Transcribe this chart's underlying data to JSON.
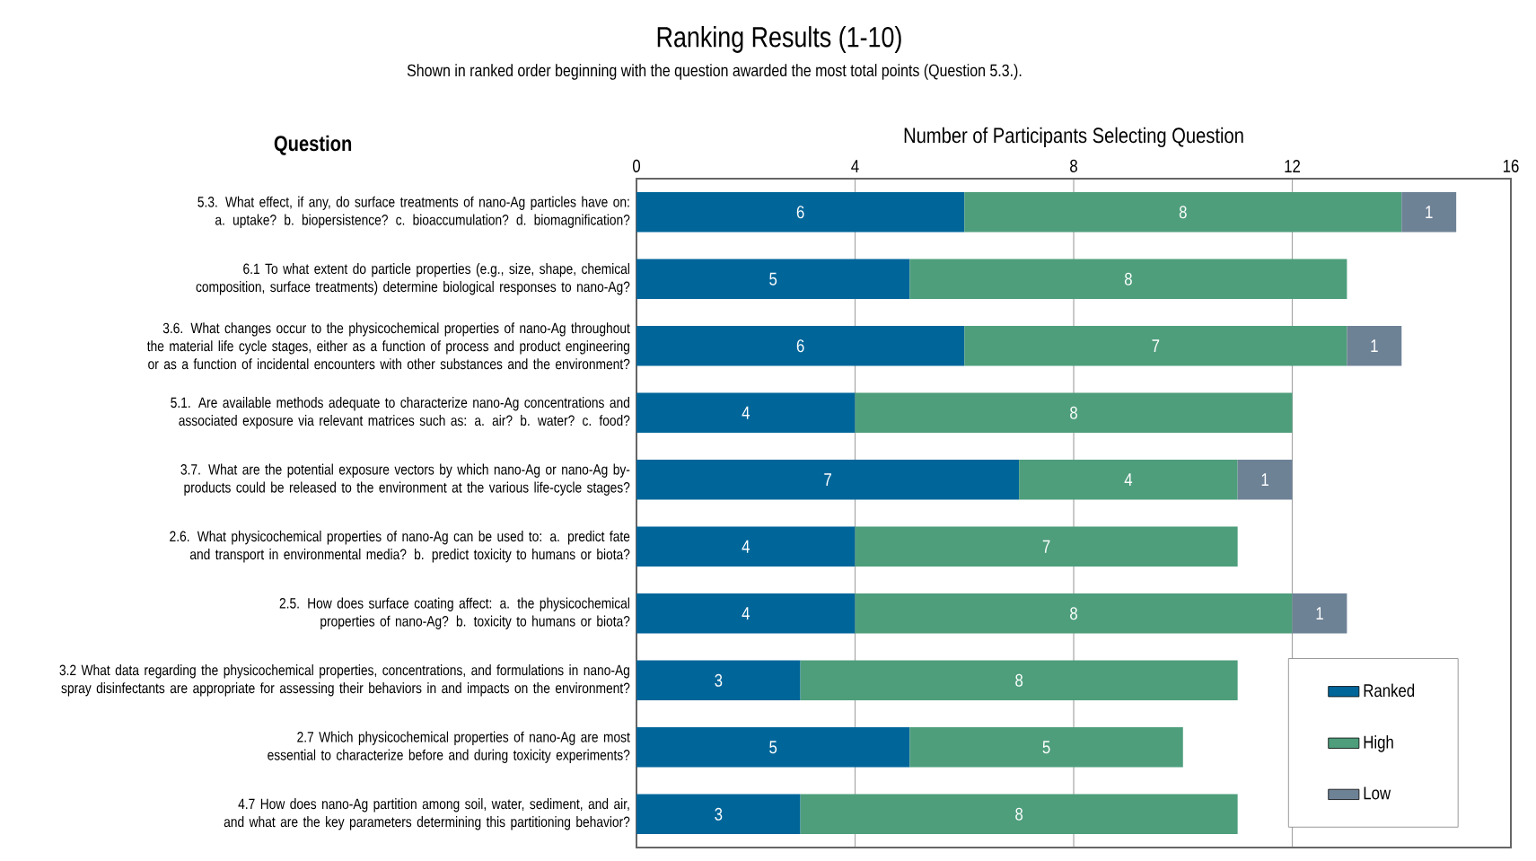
{
  "chart_data": {
    "type": "bar",
    "orientation": "horizontal",
    "stacked": true,
    "title": "Ranking Results (1-10)",
    "subtitle": "Shown in ranked order beginning with the question awarded the most total points (Question 5.3.).",
    "xlabel": "Number of Participants Selecting Question",
    "ylabel": "Question",
    "categories": [
      "5.3. What effect, if any, do surface treatments of nano-Ag particles have on: a. uptake? b. biopersistence? c. bioaccumulation? d. biomagnification?",
      "6.1 To what extent do particle properties (e.g., size, shape, chemical composition, surface treatments) determine biological responses to nano-Ag?",
      "3.6. What changes occur to the physicochemical properties of nano-Ag throughout the material life cycle stages, either as a function of process and product engineering or as a function of incidental encounters with other substances and the environment?",
      "5.1. Are available methods adequate to characterize nano-Ag concentrations and associated exposure via relevant matrices such as: a. air? b. water? c. food?",
      "3.7. What are the potential exposure vectors by which nano-Ag or nano-Ag by-products could be released to the environment at the various life-cycle stages?",
      "2.6. What physicochemical properties of nano-Ag can be used to: a. predict fate and transport in environmental media? b. predict toxicity to humans or biota?",
      "2.5. How does surface coating affect: a. the physicochemical properties of nano-Ag? b. toxicity to humans or biota?",
      "3.2 What data regarding the physicochemical properties, concentrations, and formulations in nano-Ag spray disinfectants are appropriate for assessing their behaviors in and impacts on the environment?",
      "2.7 Which physicochemical properties of nano-Ag are most essential to characterize before and during toxicity experiments?",
      "4.7 How does nano-Ag partition among soil, water, sediment, and air, and what are the key parameters determining this partitioning behavior?"
    ],
    "series": [
      {
        "name": "Ranked",
        "color": "#00669a",
        "values": [
          6,
          5,
          6,
          4,
          7,
          4,
          4,
          3,
          5,
          3
        ]
      },
      {
        "name": "High",
        "color": "#4e9e7c",
        "values": [
          8,
          8,
          7,
          8,
          4,
          7,
          8,
          8,
          5,
          8
        ]
      },
      {
        "name": "Low",
        "color": "#6e8296",
        "values": [
          1,
          null,
          1,
          null,
          1,
          null,
          1,
          null,
          null,
          null
        ]
      }
    ],
    "xlim": [
      0,
      16
    ],
    "xticks": [
      0,
      4,
      8,
      12,
      16
    ],
    "grid": "x",
    "legend": "bottom right",
    "data_labels": true
  }
}
